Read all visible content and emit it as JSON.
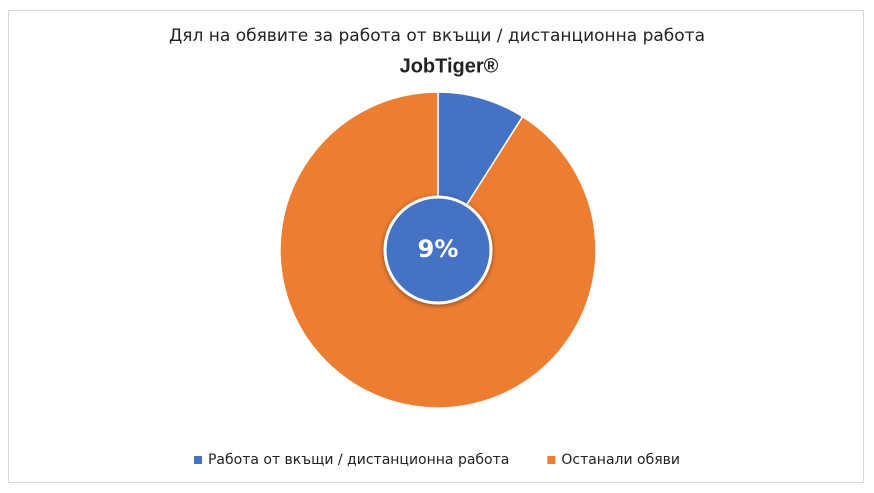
{
  "chart_data": {
    "type": "pie",
    "title": "Дял на обявите за работа от вкъщи / дистанционна работа",
    "logo": "JobTiger®",
    "categories": [
      "Работа от вкъщи / дистанционна работа",
      "Останали обяви"
    ],
    "values": [
      9,
      91
    ],
    "value_labels": [
      "9%",
      null
    ],
    "colors": [
      "#4472c4",
      "#ed7d31"
    ],
    "legend": "bottom"
  }
}
